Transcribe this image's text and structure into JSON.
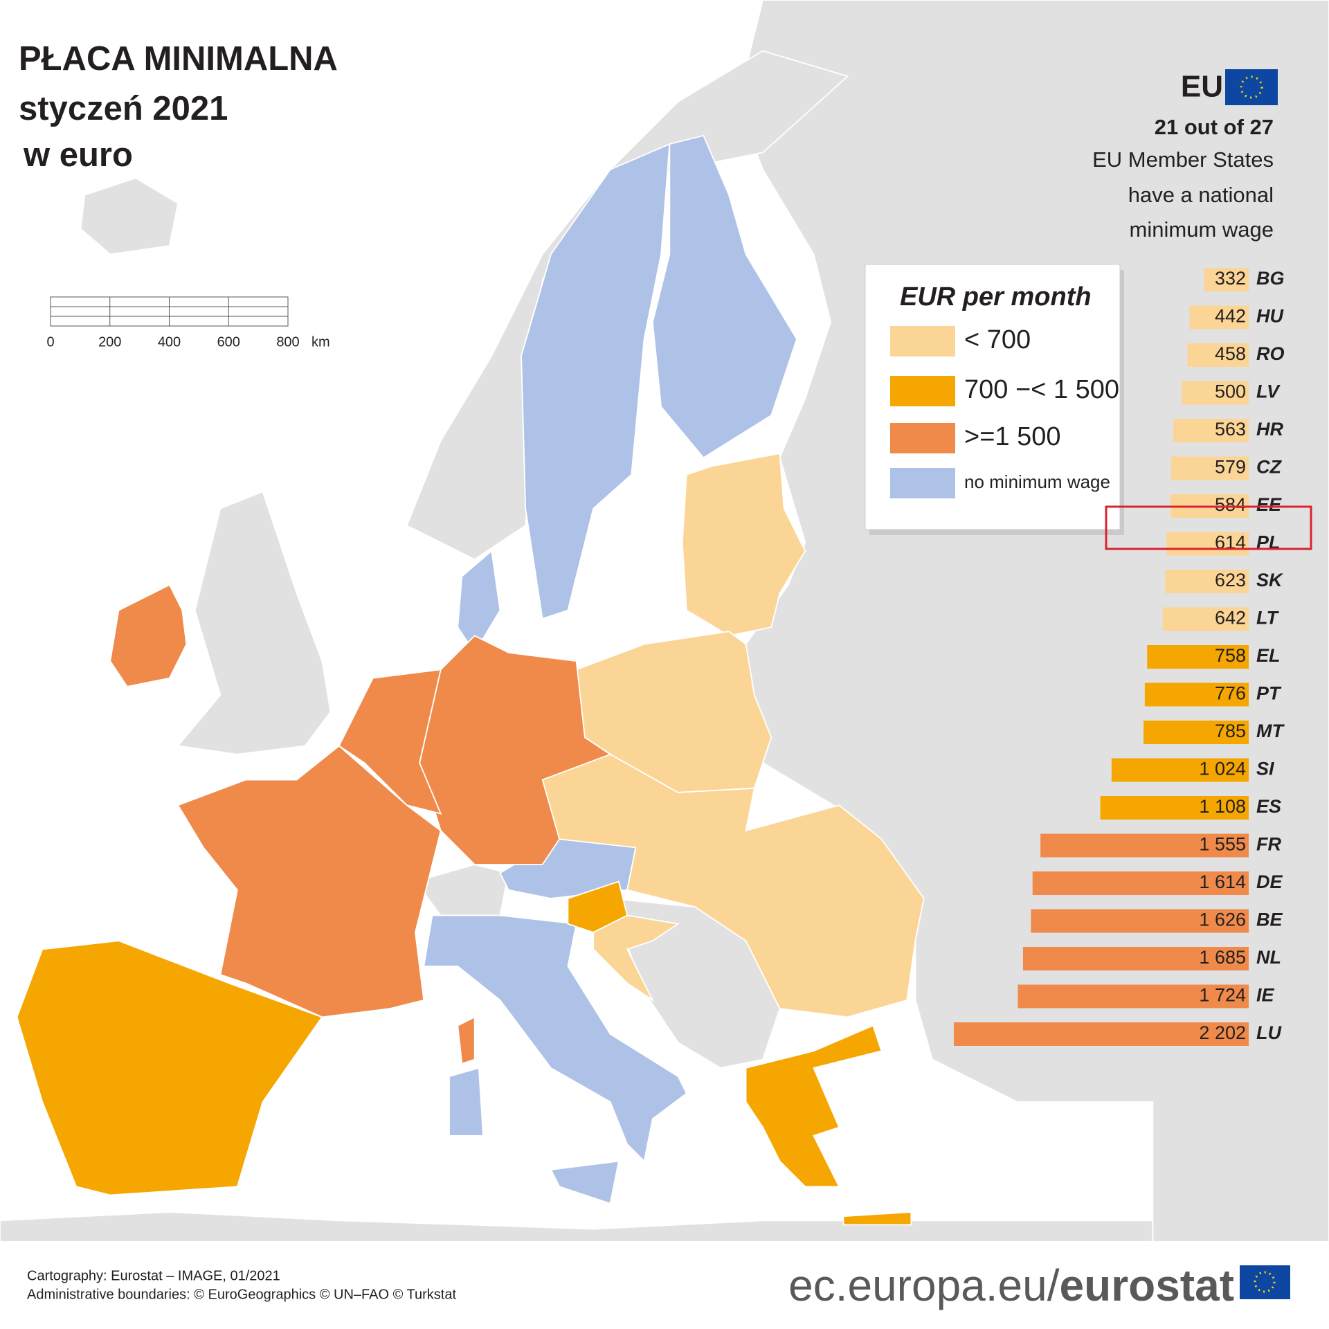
{
  "title": [
    "PŁACA MINIMALNA",
    "styczeń 2021",
    "w euro"
  ],
  "eu_label": "EU",
  "eu_note": [
    "21 out of 27",
    "EU Member States",
    "have a national",
    "minimum wage"
  ],
  "legend": {
    "title": "EUR per month",
    "items": [
      {
        "label": "< 700",
        "color": "#fbd595"
      },
      {
        "label": "700 −< 1 500",
        "color": "#f5a600"
      },
      {
        "label": ">=1 500",
        "color": "#ef8a4a"
      },
      {
        "label": "no minimum wage",
        "color": "#adc2e6"
      }
    ]
  },
  "scale_bar": {
    "ticks": [
      0,
      200,
      400,
      600,
      800
    ],
    "unit": "km"
  },
  "chart_data": {
    "type": "bar",
    "categories": [
      "BG",
      "HU",
      "RO",
      "LV",
      "HR",
      "CZ",
      "EE",
      "PL",
      "SK",
      "LT",
      "EL",
      "PT",
      "MT",
      "SI",
      "ES",
      "FR",
      "DE",
      "BE",
      "NL",
      "IE",
      "LU"
    ],
    "values": [
      332,
      442,
      458,
      500,
      563,
      579,
      584,
      614,
      623,
      642,
      758,
      776,
      785,
      1024,
      1108,
      1555,
      1614,
      1626,
      1685,
      1724,
      2202
    ],
    "value_labels": [
      "332",
      "442",
      "458",
      "500",
      "563",
      "579",
      "584",
      "614",
      "623",
      "642",
      "758",
      "776",
      "785",
      "1 024",
      "1 108",
      "1 555",
      "1 614",
      "1 626",
      "1 685",
      "1 724",
      "2 202"
    ],
    "colors": [
      "#fbd595",
      "#fbd595",
      "#fbd595",
      "#fbd595",
      "#fbd595",
      "#fbd595",
      "#fbd595",
      "#fbd595",
      "#fbd595",
      "#fbd595",
      "#f5a600",
      "#f5a600",
      "#f5a600",
      "#f5a600",
      "#f5a600",
      "#ef8a4a",
      "#ef8a4a",
      "#ef8a4a",
      "#ef8a4a",
      "#ef8a4a",
      "#ef8a4a"
    ]
  },
  "footer": {
    "credits": [
      "Cartography: Eurostat – IMAGE, 01/2021",
      "Administrative boundaries: © EuroGeographics © UN–FAO © Turkstat"
    ],
    "site": "ec.europa.eu/",
    "site_bold": "eurostat"
  }
}
